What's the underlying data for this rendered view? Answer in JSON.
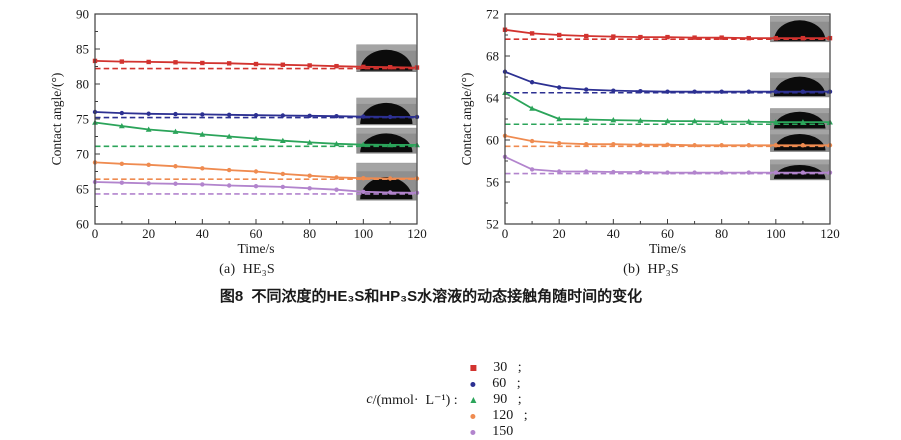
{
  "figure": {
    "main_caption": "图8  不同浓度的HE₃S和HP₃S水溶液的动态接触角随时间的变化",
    "legend": {
      "prefix_italic": "c",
      "prefix_rest": "/(mmol·  L⁻¹) : ",
      "separator": ";",
      "items": [
        {
          "label": "30",
          "color": "#d2332f",
          "marker": "square"
        },
        {
          "label": "60",
          "color": "#2c3092",
          "marker": "circle"
        },
        {
          "label": "90",
          "color": "#2ba45a",
          "marker": "triangle"
        },
        {
          "label": "120",
          "color": "#ef8b50",
          "marker": "circle"
        },
        {
          "label": "150",
          "color": "#b284cd",
          "marker": "circle"
        }
      ]
    },
    "colors": {
      "axis": "#3c3c3c",
      "tick_text": "#1a1a1a",
      "inset_bg": "#8f8f8f",
      "inset_top": "#a8a8a8",
      "droplet": "#0b0b0b"
    }
  },
  "chart_data": [
    {
      "type": "line",
      "title": "(a)  HE₃S",
      "xlabel": "Time/s",
      "ylabel": "Contact angle/(°)",
      "xlim": [
        0,
        120
      ],
      "ylim": [
        60,
        90
      ],
      "xticks": [
        0,
        20,
        40,
        60,
        80,
        100,
        120
      ],
      "yticks": [
        60,
        65,
        70,
        75,
        80,
        85,
        90
      ],
      "x_minor_step": 10,
      "y_minor_step": 2.5,
      "grid": false,
      "x": [
        0,
        10,
        20,
        30,
        40,
        50,
        60,
        70,
        80,
        90,
        100,
        110,
        120
      ],
      "series": [
        {
          "name": "30",
          "color": "#d2332f",
          "marker": "square",
          "equilibrium_dashed": 82.2,
          "y": [
            83.3,
            83.2,
            83.15,
            83.1,
            83.0,
            82.95,
            82.85,
            82.75,
            82.65,
            82.55,
            82.45,
            82.4,
            82.35
          ]
        },
        {
          "name": "60",
          "color": "#2c3092",
          "marker": "circle",
          "equilibrium_dashed": 75.2,
          "y": [
            76.0,
            75.85,
            75.75,
            75.7,
            75.65,
            75.6,
            75.55,
            75.5,
            75.45,
            75.4,
            75.35,
            75.3,
            75.3
          ]
        },
        {
          "name": "90",
          "color": "#2ba45a",
          "marker": "triangle",
          "equilibrium_dashed": 71.1,
          "y": [
            74.5,
            74.0,
            73.5,
            73.2,
            72.8,
            72.5,
            72.2,
            71.9,
            71.65,
            71.45,
            71.35,
            71.3,
            71.3
          ]
        },
        {
          "name": "120",
          "color": "#ef8b50",
          "marker": "circle",
          "equilibrium_dashed": 66.4,
          "y": [
            68.8,
            68.6,
            68.45,
            68.25,
            67.95,
            67.7,
            67.5,
            67.15,
            66.9,
            66.65,
            66.55,
            66.5,
            66.5
          ]
        },
        {
          "name": "150",
          "color": "#b284cd",
          "marker": "circle",
          "equilibrium_dashed": 64.3,
          "y": [
            66.0,
            65.9,
            65.8,
            65.75,
            65.65,
            65.5,
            65.4,
            65.3,
            65.1,
            64.9,
            64.6,
            64.5,
            64.45
          ]
        }
      ],
      "insets": [
        {
          "x": [
            97.5,
            120.5
          ],
          "y_top": 85.6,
          "y_bottom": 81.75,
          "dome": 0.78
        },
        {
          "x": [
            97.5,
            120.5
          ],
          "y_top": 78.0,
          "y_bottom": 74.15,
          "dome": 0.78
        },
        {
          "x": [
            97.5,
            120.5
          ],
          "y_top": 73.7,
          "y_bottom": 70.1,
          "dome": 0.75
        },
        {
          "x": [
            97.5,
            120.5
          ],
          "y_top": 68.7,
          "y_bottom": 63.4,
          "dome": 0.6
        }
      ]
    },
    {
      "type": "line",
      "title": "(b)  HP₃S",
      "xlabel": "Time/s",
      "ylabel": "Contact angle/(°)",
      "xlim": [
        0,
        120
      ],
      "ylim": [
        52,
        72
      ],
      "xticks": [
        0,
        20,
        40,
        60,
        80,
        100,
        120
      ],
      "yticks": [
        52,
        56,
        60,
        64,
        68,
        72
      ],
      "x_minor_step": 10,
      "y_minor_step": 2,
      "grid": false,
      "x": [
        0,
        10,
        20,
        30,
        40,
        50,
        60,
        70,
        80,
        90,
        100,
        110,
        120
      ],
      "series": [
        {
          "name": "30",
          "color": "#d2332f",
          "marker": "square",
          "equilibrium_dashed": 69.6,
          "y": [
            70.5,
            70.15,
            70.0,
            69.9,
            69.85,
            69.8,
            69.8,
            69.75,
            69.75,
            69.7,
            69.7,
            69.7,
            69.7
          ]
        },
        {
          "name": "60",
          "color": "#2c3092",
          "marker": "circle",
          "equilibrium_dashed": 64.5,
          "y": [
            66.5,
            65.5,
            65.0,
            64.8,
            64.7,
            64.65,
            64.6,
            64.6,
            64.6,
            64.6,
            64.6,
            64.6,
            64.6
          ]
        },
        {
          "name": "90",
          "color": "#2ba45a",
          "marker": "triangle",
          "equilibrium_dashed": 61.5,
          "y": [
            64.5,
            63.0,
            62.0,
            61.95,
            61.9,
            61.85,
            61.8,
            61.8,
            61.75,
            61.75,
            61.7,
            61.7,
            61.7
          ]
        },
        {
          "name": "120",
          "color": "#ef8b50",
          "marker": "circle",
          "equilibrium_dashed": 59.4,
          "y": [
            60.4,
            59.9,
            59.7,
            59.6,
            59.6,
            59.55,
            59.55,
            59.5,
            59.5,
            59.5,
            59.5,
            59.5,
            59.5
          ]
        },
        {
          "name": "150",
          "color": "#b284cd",
          "marker": "circle",
          "equilibrium_dashed": 56.8,
          "y": [
            58.4,
            57.2,
            57.0,
            57.0,
            56.95,
            56.95,
            56.9,
            56.9,
            56.9,
            56.9,
            56.9,
            56.9,
            56.9
          ]
        }
      ],
      "insets": [
        {
          "x": [
            98,
            120.5
          ],
          "y_top": 71.8,
          "y_bottom": 69.35,
          "dome": 0.8
        },
        {
          "x": [
            98,
            120.5
          ],
          "y_top": 66.4,
          "y_bottom": 64.1,
          "dome": 0.8
        },
        {
          "x": [
            98,
            120.5
          ],
          "y_top": 63.0,
          "y_bottom": 61.0,
          "dome": 0.8
        },
        {
          "x": [
            98,
            120.5
          ],
          "y_top": 61.0,
          "y_bottom": 58.9,
          "dome": 0.75
        },
        {
          "x": [
            98,
            120.5
          ],
          "y_top": 58.1,
          "y_bottom": 56.2,
          "dome": 0.7
        }
      ]
    }
  ]
}
